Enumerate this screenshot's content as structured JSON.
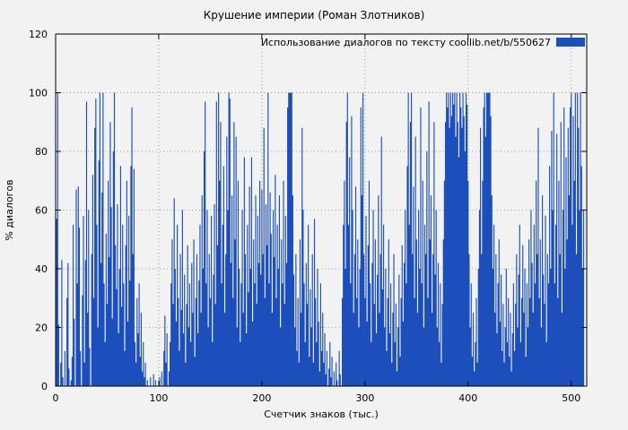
{
  "title": "Крушение империи (Роман Злотников)",
  "chart_data": {
    "type": "bar",
    "title": "Крушение империи (Роман Злотников)",
    "xlabel": "Счетчик знаков (тыс.)",
    "ylabel": "% диалогов",
    "legend": "Использование диалогов по тексту  coollib.net/b/550627",
    "legend_position": "top-right",
    "grid": true,
    "bar_color": "#1c4ebc",
    "grid_color": "#9a9a9a",
    "background": "#f2f2f2",
    "xlim": [
      0,
      515
    ],
    "ylim": [
      0,
      120
    ],
    "xticks": [
      0,
      100,
      200,
      300,
      400,
      500
    ],
    "yticks": [
      0,
      20,
      40,
      60,
      80,
      100,
      120
    ],
    "x_start": 0,
    "x_step": 1,
    "values": [
      0,
      57,
      100,
      21,
      0,
      8,
      43,
      3,
      0,
      12,
      0,
      30,
      42,
      6,
      0,
      2,
      10,
      55,
      23,
      0,
      67,
      35,
      68,
      54,
      12,
      0,
      31,
      58,
      8,
      43,
      97,
      25,
      60,
      13,
      0,
      45,
      72,
      30,
      88,
      98,
      55,
      20,
      77,
      100,
      42,
      66,
      100,
      35,
      15,
      52,
      28,
      70,
      44,
      90,
      61,
      23,
      80,
      100,
      48,
      33,
      62,
      18,
      40,
      75,
      27,
      55,
      35,
      12,
      48,
      70,
      22,
      58,
      36,
      75,
      95,
      45,
      74,
      15,
      8,
      30,
      18,
      35,
      10,
      25,
      5,
      15,
      3,
      8,
      0,
      2,
      0,
      0,
      3,
      0,
      0,
      4,
      0,
      2,
      0,
      0,
      0,
      3,
      0,
      5,
      0,
      12,
      24,
      8,
      18,
      0,
      5,
      15,
      35,
      50,
      28,
      64,
      40,
      22,
      55,
      30,
      12,
      45,
      26,
      60,
      18,
      38,
      8,
      28,
      48,
      20,
      35,
      15,
      42,
      25,
      50,
      10,
      30,
      45,
      18,
      36,
      55,
      25,
      65,
      40,
      80,
      97,
      35,
      60,
      20,
      45,
      30,
      58,
      15,
      38,
      62,
      28,
      97,
      48,
      100,
      70,
      90,
      35,
      55,
      75,
      25,
      45,
      85,
      60,
      100,
      98,
      42,
      65,
      30,
      90,
      50,
      85,
      20,
      70,
      40,
      15,
      35,
      60,
      25,
      78,
      45,
      18,
      55,
      32,
      68,
      40,
      78,
      22,
      50,
      35,
      65,
      28,
      58,
      42,
      70,
      38,
      67,
      45,
      88,
      30,
      62,
      48,
      100,
      35,
      66,
      52,
      25,
      60,
      44,
      72,
      30,
      55,
      40,
      65,
      20,
      50,
      35,
      70,
      28,
      58,
      42,
      95,
      100,
      100,
      100,
      100,
      65,
      38,
      20,
      45,
      12,
      30,
      8,
      50,
      25,
      88,
      60,
      35,
      15,
      42,
      28,
      55,
      10,
      33,
      20,
      45,
      8,
      57,
      30,
      15,
      40,
      22,
      5,
      35,
      12,
      25,
      8,
      18,
      4,
      12,
      0,
      6,
      15,
      3,
      10,
      0,
      5,
      0,
      8,
      2,
      0,
      12,
      4,
      0,
      30,
      55,
      70,
      40,
      90,
      100,
      55,
      78,
      35,
      92,
      60,
      25,
      45,
      68,
      30,
      50,
      20,
      40,
      95,
      65,
      100,
      45,
      30,
      58,
      22,
      48,
      70,
      35,
      15,
      42,
      60,
      28,
      50,
      18,
      38,
      65,
      25,
      45,
      85,
      33,
      55,
      20,
      40,
      12,
      30,
      50,
      18,
      35,
      8,
      25,
      45,
      15,
      28,
      5,
      20,
      38,
      10,
      30,
      48,
      22,
      42,
      60,
      35,
      75,
      100,
      55,
      90,
      100,
      45,
      68,
      30,
      85,
      50,
      25,
      60,
      40,
      95,
      35,
      70,
      20,
      55,
      45,
      80,
      30,
      97,
      50,
      65,
      25,
      45,
      90,
      38,
      60,
      20,
      42,
      15,
      35,
      8,
      28,
      50,
      70,
      90,
      100,
      95,
      100,
      88,
      100,
      92,
      100,
      96,
      100,
      85,
      100,
      90,
      78,
      100,
      95,
      88,
      100,
      92,
      80,
      100,
      96,
      70,
      45,
      20,
      35,
      10,
      25,
      5,
      15,
      30,
      8,
      40,
      60,
      88,
      45,
      70,
      95,
      100,
      85,
      100,
      100,
      100,
      100,
      92,
      65,
      40,
      55,
      25,
      45,
      18,
      35,
      50,
      22,
      38,
      12,
      28,
      8,
      20,
      40,
      15,
      30,
      10,
      25,
      5,
      18,
      35,
      12,
      28,
      45,
      20,
      38,
      55,
      15,
      30,
      48,
      25,
      40,
      10,
      35,
      20,
      50,
      30,
      60,
      42,
      25,
      55,
      35,
      70,
      45,
      88,
      30,
      50,
      20,
      65,
      38,
      28,
      58,
      15,
      45,
      35,
      75,
      40,
      87,
      60,
      100,
      35,
      55,
      86,
      30,
      70,
      45,
      90,
      25,
      60,
      95,
      40,
      78,
      50,
      88,
      65,
      95,
      100,
      55,
      92,
      70,
      100,
      45,
      100,
      88,
      60,
      100,
      75,
      40,
      60
    ]
  }
}
